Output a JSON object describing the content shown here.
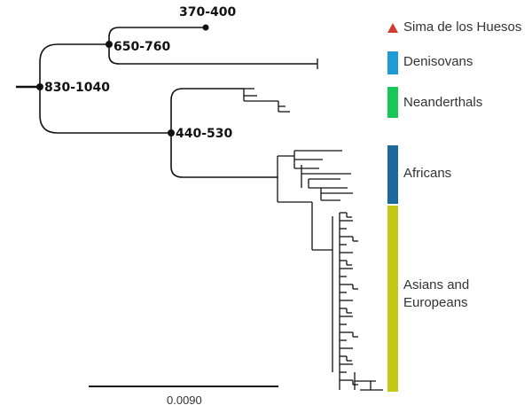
{
  "nodes": {
    "sima_age": "370-400",
    "deni_split": "650-760",
    "root_split": "830-1040",
    "human_split": "440-530"
  },
  "legend": {
    "sima": {
      "label": "Sima de los Huesos",
      "color": "#d73a31"
    },
    "denisovans": {
      "label": "Denisovans",
      "color": "#1e9bd7"
    },
    "neanderthals": {
      "label": "Neanderthals",
      "color": "#18c75a"
    },
    "africans": {
      "label": "Africans",
      "color": "#1c6a9d"
    },
    "asians_europeans": {
      "label": "Asians and Europeans",
      "line1": "Asians and",
      "line2": "Europeans",
      "color": "#c4c918"
    }
  },
  "scale_bar": {
    "label": "0.0090"
  }
}
